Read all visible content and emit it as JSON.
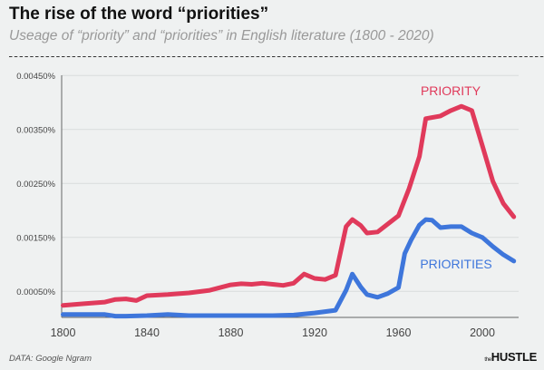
{
  "header": {
    "title": "The rise of the word “priorities”",
    "subtitle": "Useage of  “priority” and “priorities” in English literature (1800 - 2020)"
  },
  "footer": {
    "source": "DATA: Google Ngram",
    "logo_prefix": "the",
    "logo": "HUSTLE"
  },
  "chart_data": {
    "type": "line",
    "title": "The rise of the word “priorities”",
    "xlabel": "",
    "ylabel": "",
    "xlim": [
      1800,
      2015
    ],
    "ylim": [
      0,
      0.0045
    ],
    "x_ticks": [
      "1800",
      "1840",
      "1880",
      "1920",
      "1960",
      "2000"
    ],
    "y_ticks": [
      "0.00050%",
      "0.00150%",
      "0.00250%",
      "0.00350%",
      "0.00450%"
    ],
    "y_tick_values": [
      0.0005,
      0.0015,
      0.0025,
      0.0035,
      0.0045
    ],
    "grid": true,
    "legend": "direct labels",
    "series": [
      {
        "name": "PRIORITY",
        "color": "#e03a5b",
        "x": [
          1800,
          1810,
          1820,
          1825,
          1830,
          1835,
          1840,
          1850,
          1860,
          1870,
          1880,
          1885,
          1890,
          1895,
          1900,
          1905,
          1910,
          1915,
          1920,
          1925,
          1930,
          1935,
          1938,
          1942,
          1945,
          1950,
          1955,
          1960,
          1965,
          1970,
          1973,
          1980,
          1985,
          1990,
          1995,
          2000,
          2005,
          2010,
          2015
        ],
        "y": [
          0.00024,
          0.00027,
          0.0003,
          0.00035,
          0.00036,
          0.00033,
          0.00042,
          0.00044,
          0.00047,
          0.00052,
          0.00062,
          0.00064,
          0.00063,
          0.00065,
          0.00063,
          0.00061,
          0.00065,
          0.00082,
          0.00074,
          0.00072,
          0.0008,
          0.0017,
          0.00183,
          0.00172,
          0.00158,
          0.0016,
          0.00175,
          0.0019,
          0.0024,
          0.003,
          0.0037,
          0.00375,
          0.00385,
          0.00393,
          0.00385,
          0.0032,
          0.00254,
          0.00213,
          0.00188
        ]
      },
      {
        "name": "PRIORITIES",
        "color": "#3e76db",
        "x": [
          1800,
          1810,
          1820,
          1825,
          1830,
          1840,
          1850,
          1860,
          1870,
          1880,
          1890,
          1900,
          1910,
          1920,
          1930,
          1935,
          1938,
          1942,
          1945,
          1950,
          1955,
          1960,
          1963,
          1966,
          1970,
          1973,
          1976,
          1980,
          1985,
          1990,
          1995,
          2000,
          2005,
          2010,
          2015
        ],
        "y": [
          7e-05,
          7e-05,
          7e-05,
          4e-05,
          4e-05,
          5e-05,
          7e-05,
          5e-05,
          5e-05,
          5e-05,
          5e-05,
          5e-05,
          6e-05,
          0.0001,
          0.00015,
          0.00052,
          0.00082,
          0.00058,
          0.00044,
          0.00039,
          0.00046,
          0.00057,
          0.0012,
          0.00145,
          0.00173,
          0.00183,
          0.00182,
          0.00168,
          0.0017,
          0.0017,
          0.00158,
          0.0015,
          0.00133,
          0.00118,
          0.00106
        ]
      }
    ]
  }
}
